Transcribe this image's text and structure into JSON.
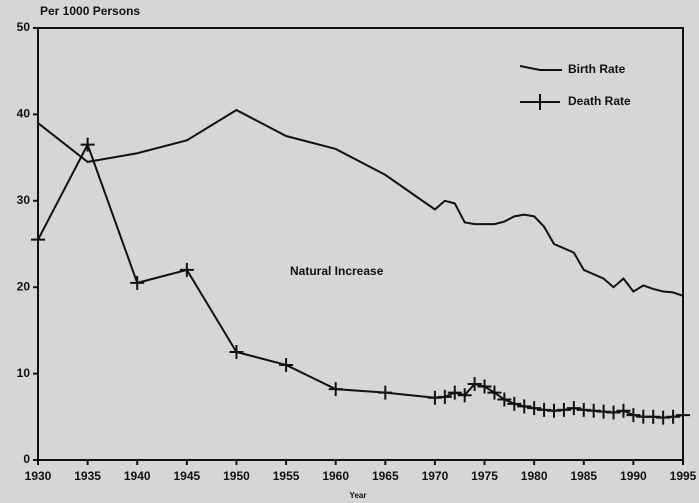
{
  "chart_data": {
    "type": "line",
    "y_label": "Per 1000 Persons",
    "x_label": "Year",
    "annotation": "Natural Increase",
    "x": [
      1930,
      1935,
      1940,
      1945,
      1950,
      1955,
      1960,
      1965,
      1970,
      1971,
      1972,
      1973,
      1974,
      1975,
      1976,
      1977,
      1978,
      1979,
      1980,
      1981,
      1982,
      1983,
      1984,
      1985,
      1986,
      1987,
      1988,
      1989,
      1990,
      1991,
      1992,
      1993,
      1994,
      1995
    ],
    "series": [
      {
        "name": "Birth Rate",
        "color": "#111111",
        "marker": "none",
        "values": [
          39,
          34.5,
          35.5,
          37,
          40.5,
          37.5,
          36,
          33,
          29,
          30,
          29.7,
          27.5,
          27.3,
          27.3,
          27.3,
          27.6,
          28.2,
          28.4,
          28.2,
          27,
          25,
          24.5,
          24,
          22,
          21.5,
          21,
          20,
          21,
          19.5,
          20.2,
          19.8,
          19.5,
          19.4,
          19
        ]
      },
      {
        "name": "Death Rate",
        "color": "#111111",
        "marker": "plus",
        "values": [
          25.5,
          36.5,
          20.5,
          22,
          12.5,
          11,
          8.2,
          7.8,
          7.2,
          7.3,
          7.8,
          7.5,
          8.8,
          8.5,
          7.8,
          7,
          6.5,
          6.2,
          6,
          5.8,
          5.7,
          5.8,
          6,
          5.8,
          5.7,
          5.6,
          5.5,
          5.7,
          5.2,
          5,
          5,
          4.9,
          5,
          5.2
        ]
      }
    ],
    "xlim": [
      1930,
      1995
    ],
    "xticks": [
      1930,
      1935,
      1940,
      1945,
      1950,
      1955,
      1960,
      1965,
      1970,
      1975,
      1980,
      1985,
      1990,
      1995
    ],
    "ylim": [
      0,
      50
    ],
    "yticks": [
      0,
      10,
      20,
      30,
      40,
      50
    ],
    "grid": false,
    "legend": "upper right"
  }
}
